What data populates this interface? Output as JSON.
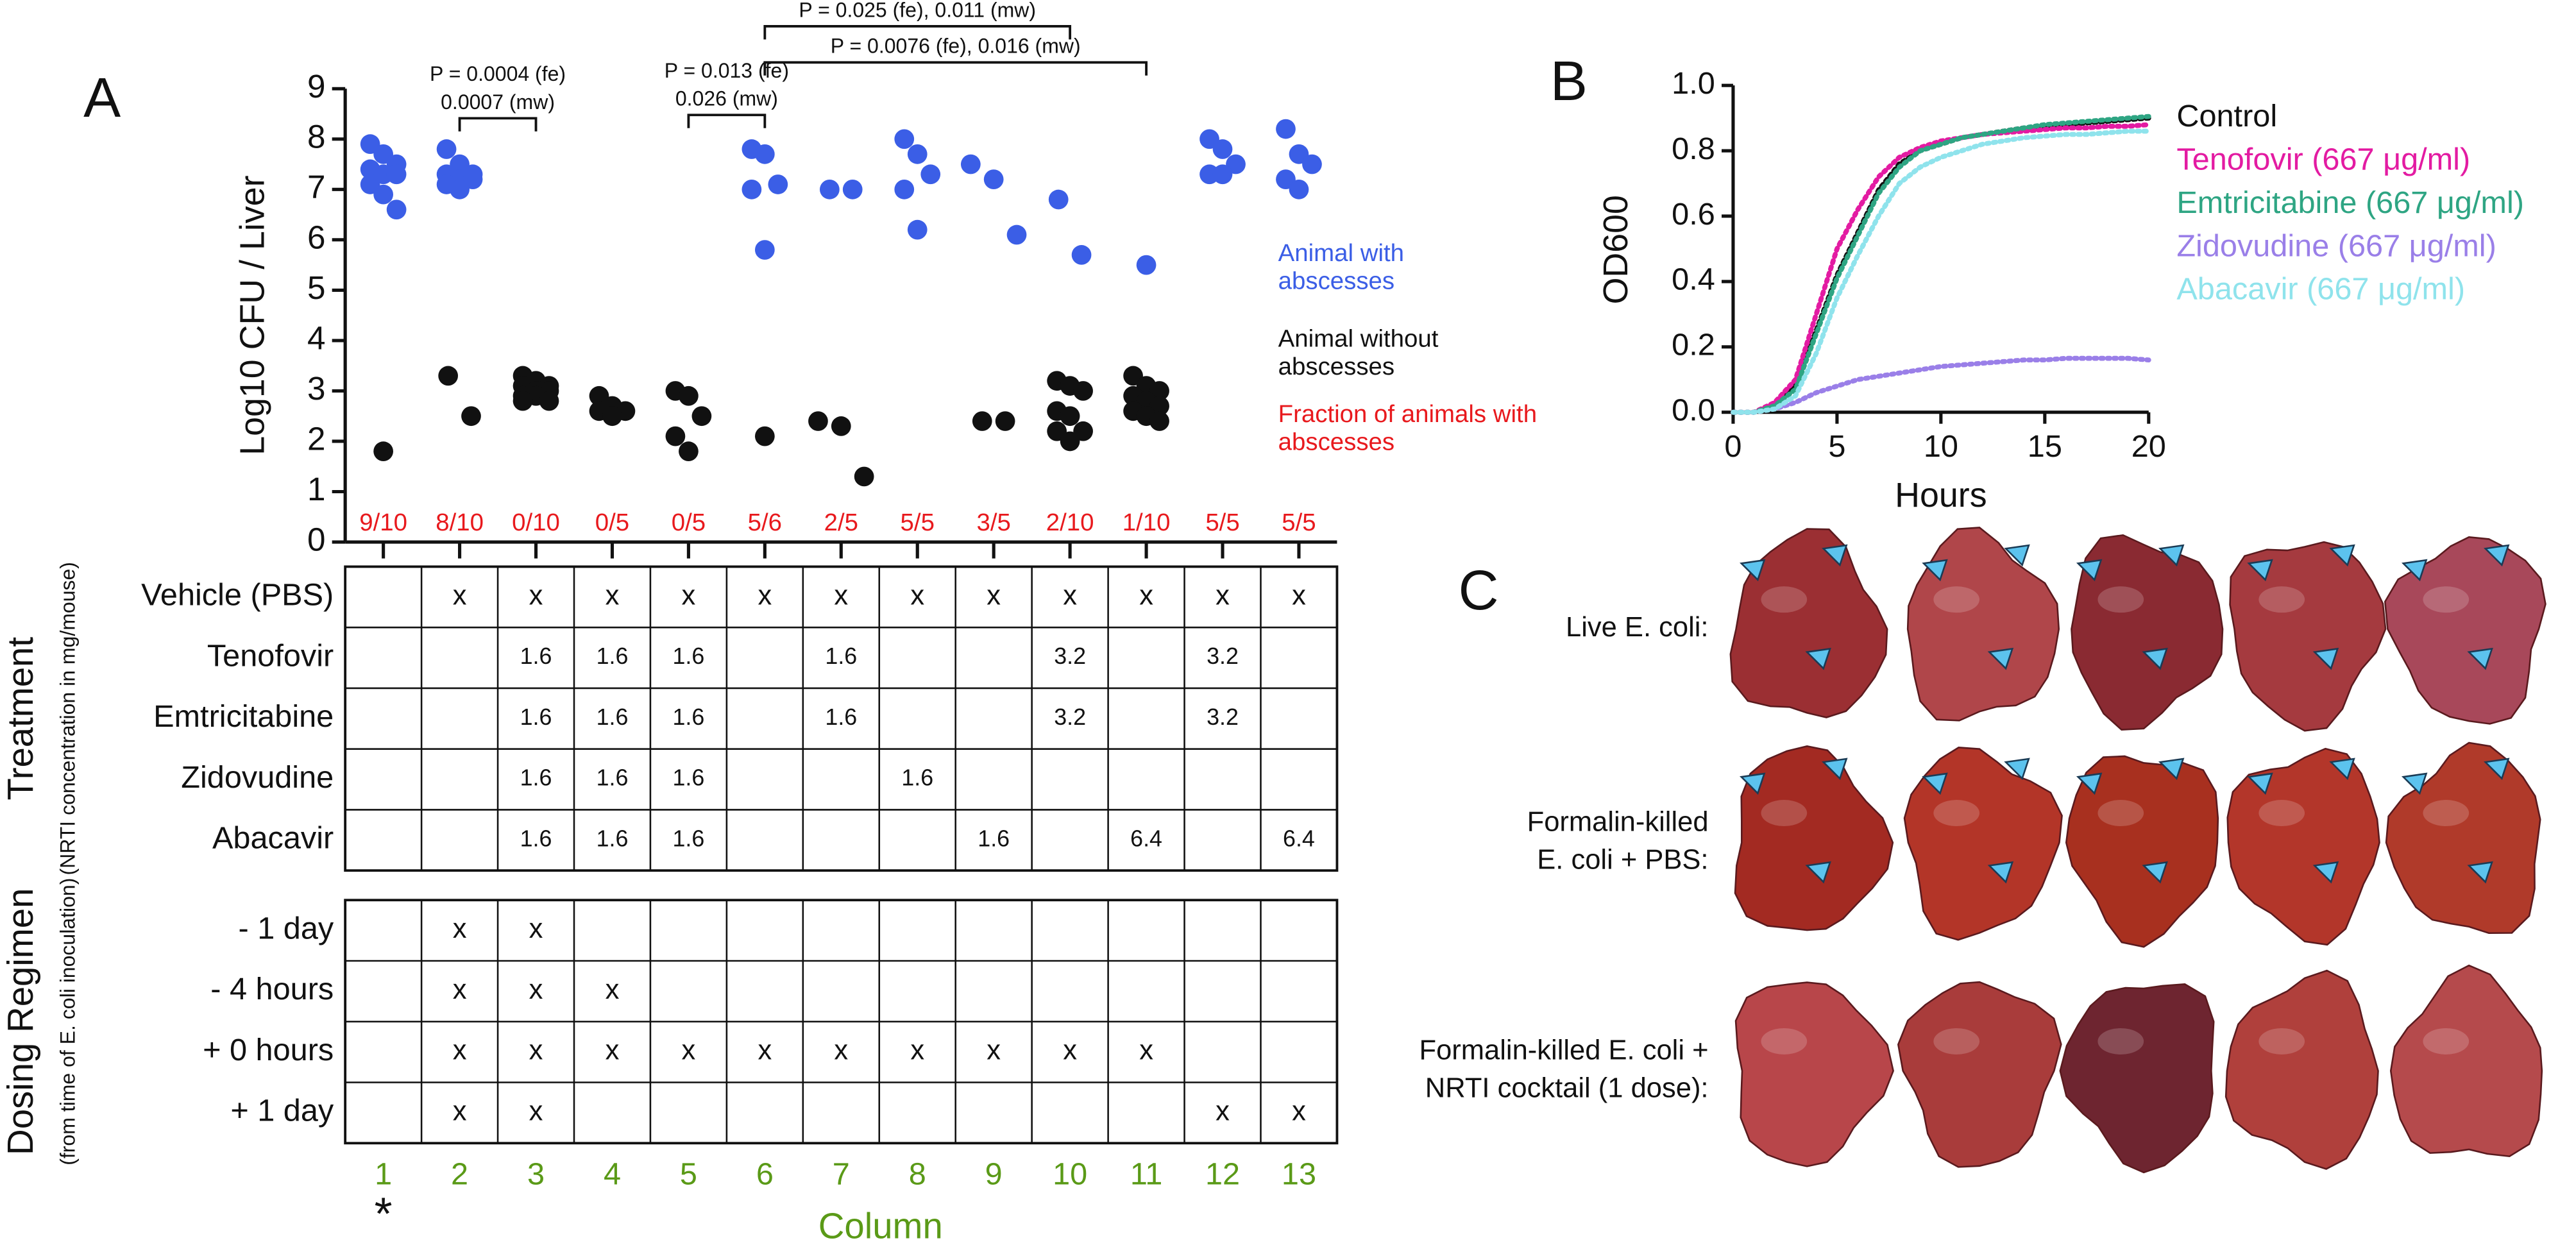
{
  "chart_data": [
    {
      "type": "strip",
      "panel_label": "A",
      "y_label": "Log10 CFU / Liver",
      "x_label": "Column",
      "footnote_marker": "*",
      "ylim": [
        0,
        9
      ],
      "yticks": [
        0,
        1,
        2,
        3,
        4,
        5,
        6,
        7,
        8,
        9
      ],
      "categories": [
        "1",
        "2",
        "3",
        "4",
        "5",
        "6",
        "7",
        "8",
        "9",
        "10",
        "11",
        "12",
        "13"
      ],
      "series": [
        {
          "name": "Animal with abscesses",
          "color": "#3b5ee6",
          "values": [
            [
              7.9,
              7.7,
              7.5,
              7.4,
              7.3,
              7.3,
              7.1,
              6.9,
              6.6
            ],
            [
              7.8,
              7.5,
              7.3,
              7.3,
              7.2,
              7.2,
              7.1,
              7.0
            ],
            [],
            [],
            [],
            [
              7.8,
              7.7,
              7.1,
              7.0,
              5.8
            ],
            [
              7.0,
              7.0
            ],
            [
              8.0,
              7.7,
              7.3,
              7.0,
              6.2
            ],
            [
              7.5,
              7.2,
              6.1
            ],
            [
              6.8,
              5.7
            ],
            [
              5.5
            ],
            [
              8.0,
              7.8,
              7.5,
              7.3,
              7.3
            ],
            [
              8.2,
              7.7,
              7.5,
              7.2,
              7.0
            ]
          ]
        },
        {
          "name": "Animal without abscesses",
          "color": "#111111",
          "values": [
            [
              1.8
            ],
            [
              3.3,
              2.5
            ],
            [
              3.3,
              3.2,
              3.1,
              3.1,
              3.0,
              3.0,
              2.9,
              2.9,
              2.8,
              2.8
            ],
            [
              2.9,
              2.7,
              2.6,
              2.6,
              2.5
            ],
            [
              3.0,
              2.9,
              2.5,
              2.1,
              1.8
            ],
            [
              2.1
            ],
            [
              2.4,
              2.3,
              1.3
            ],
            [],
            [
              2.4,
              2.4
            ],
            [
              3.2,
              3.1,
              3.0,
              2.6,
              2.5,
              2.2,
              2.2,
              2.0
            ],
            [
              3.3,
              3.1,
              3.0,
              2.9,
              2.8,
              2.7,
              2.6,
              2.5,
              2.4
            ],
            [],
            []
          ]
        }
      ],
      "fractions": {
        "name": "Fraction of animals with abscesses",
        "color": "#e8191d",
        "labels": [
          "9/10",
          "8/10",
          "0/10",
          "0/5",
          "0/5",
          "5/6",
          "2/5",
          "5/5",
          "3/5",
          "2/10",
          "1/10",
          "5/5",
          "5/5"
        ]
      },
      "brackets": [
        {
          "lines": [
            "P = 0.0004 (fe)",
            "0.0007 (mw)"
          ]
        },
        {
          "lines": [
            "P = 0.013 (fe)",
            "0.026 (mw)"
          ]
        },
        {
          "lines": [
            "P = 0.025 (fe), 0.011 (mw)"
          ]
        },
        {
          "lines": [
            "P = 0.0076 (fe), 0.016 (mw)"
          ]
        }
      ]
    },
    {
      "type": "line",
      "panel_label": "B",
      "x_label": "Hours",
      "y_label": "OD600",
      "xlim": [
        0,
        20
      ],
      "xticks": [
        0,
        5,
        10,
        15,
        20
      ],
      "ylim": [
        0,
        1
      ],
      "yticks": [
        {
          "value": 0,
          "label": "0.0"
        },
        0.2,
        0.4,
        0.6,
        0.8,
        {
          "value": 1,
          "label": "1.0"
        }
      ],
      "x": [
        0,
        1,
        2,
        3,
        4,
        5,
        6,
        7,
        8,
        9,
        10,
        11,
        12,
        13,
        14,
        15,
        16,
        17,
        18,
        19,
        20
      ],
      "series": [
        {
          "name": "Control",
          "color": "#111111",
          "values": [
            0,
            0,
            0.02,
            0.08,
            0.25,
            0.42,
            0.55,
            0.68,
            0.76,
            0.8,
            0.82,
            0.84,
            0.85,
            0.86,
            0.87,
            0.875,
            0.88,
            0.885,
            0.89,
            0.895,
            0.9
          ]
        },
        {
          "name": "Tenofovir (667 μg/ml)",
          "color": "#e31ba2",
          "values": [
            0,
            0,
            0.03,
            0.1,
            0.3,
            0.5,
            0.62,
            0.72,
            0.78,
            0.81,
            0.83,
            0.84,
            0.85,
            0.855,
            0.86,
            0.865,
            0.87,
            0.87,
            0.875,
            0.875,
            0.88
          ]
        },
        {
          "name": "Emtricitabine (667 μg/ml)",
          "color": "#2ea583",
          "values": [
            0,
            0,
            0.02,
            0.07,
            0.24,
            0.41,
            0.54,
            0.67,
            0.75,
            0.8,
            0.82,
            0.84,
            0.85,
            0.86,
            0.87,
            0.88,
            0.885,
            0.89,
            0.895,
            0.9,
            0.905
          ]
        },
        {
          "name": "Zidovudine (667 μg/ml)",
          "color": "#9a7fe8",
          "values": [
            0,
            0,
            0.01,
            0.03,
            0.06,
            0.08,
            0.1,
            0.11,
            0.12,
            0.13,
            0.14,
            0.145,
            0.15,
            0.155,
            0.16,
            0.16,
            0.165,
            0.165,
            0.165,
            0.165,
            0.16
          ]
        },
        {
          "name": "Abacavir (667 μg/ml)",
          "color": "#8fe3ec",
          "values": [
            0,
            0,
            0.01,
            0.05,
            0.18,
            0.35,
            0.48,
            0.6,
            0.7,
            0.75,
            0.78,
            0.8,
            0.82,
            0.83,
            0.84,
            0.845,
            0.85,
            0.85,
            0.855,
            0.86,
            0.86
          ]
        }
      ]
    }
  ],
  "tables": [
    {
      "title": "Treatment",
      "subtitle": "(NRTI concentration in mg/mouse)",
      "rows": [
        {
          "label": "Vehicle (PBS)",
          "cells": [
            null,
            "x",
            "x",
            "x",
            "x",
            "x",
            "x",
            "x",
            "x",
            "x",
            "x",
            "x",
            "x"
          ]
        },
        {
          "label": "Tenofovir",
          "cells": [
            null,
            null,
            1.6,
            1.6,
            1.6,
            null,
            1.6,
            null,
            null,
            3.2,
            null,
            3.2,
            null
          ]
        },
        {
          "label": "Emtricitabine",
          "cells": [
            null,
            null,
            1.6,
            1.6,
            1.6,
            null,
            1.6,
            null,
            null,
            3.2,
            null,
            3.2,
            null
          ]
        },
        {
          "label": "Zidovudine",
          "cells": [
            null,
            null,
            1.6,
            1.6,
            1.6,
            null,
            null,
            1.6,
            null,
            null,
            null,
            null,
            null
          ]
        },
        {
          "label": "Abacavir",
          "cells": [
            null,
            null,
            1.6,
            1.6,
            1.6,
            null,
            null,
            null,
            1.6,
            null,
            6.4,
            null,
            6.4
          ]
        }
      ]
    },
    {
      "title": "Dosing Regimen",
      "subtitle": "(from time of E. coli inoculation)",
      "rows": [
        {
          "label": "- 1 day",
          "cells": [
            null,
            "x",
            "x",
            null,
            null,
            null,
            null,
            null,
            null,
            null,
            null,
            null,
            null
          ]
        },
        {
          "label": "- 4 hours",
          "cells": [
            null,
            "x",
            "x",
            "x",
            null,
            null,
            null,
            null,
            null,
            null,
            null,
            null,
            null
          ]
        },
        {
          "label": "+ 0 hours",
          "cells": [
            null,
            "x",
            "x",
            "x",
            "x",
            "x",
            "x",
            "x",
            "x",
            "x",
            "x",
            null,
            null
          ]
        },
        {
          "label": "+ 1 day",
          "cells": [
            null,
            "x",
            "x",
            null,
            null,
            null,
            null,
            null,
            null,
            null,
            null,
            "x",
            "x"
          ]
        }
      ]
    }
  ],
  "panel_c": {
    "label": "C",
    "rows": [
      {
        "lines": [
          "Live E. coli:"
        ]
      },
      {
        "lines": [
          "Formalin-killed",
          "E. coli + PBS:"
        ]
      },
      {
        "lines": [
          "Formalin-killed E. coli +",
          "NRTI cocktail (1 dose):"
        ]
      }
    ]
  }
}
